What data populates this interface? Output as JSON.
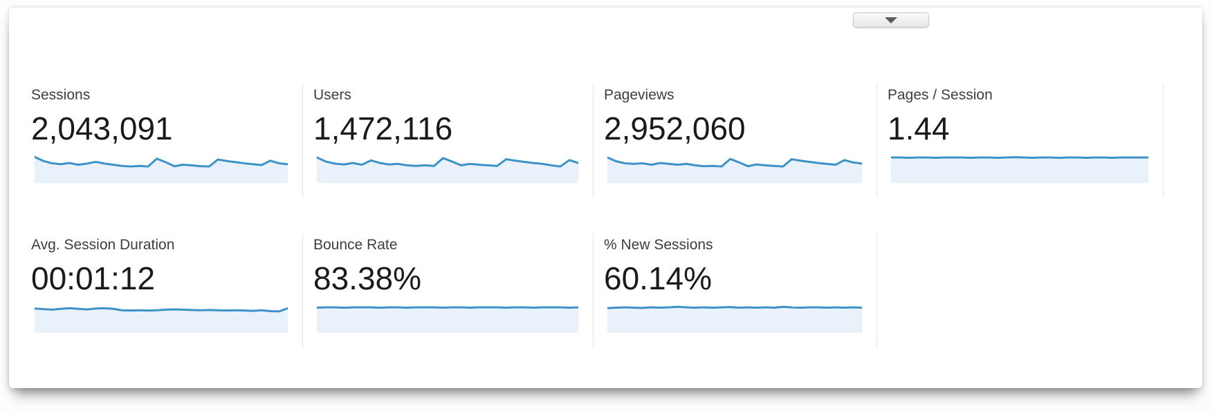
{
  "panel": {
    "collapse_button": {
      "icon": "chevron-down"
    }
  },
  "colors": {
    "spark_line": "#3c91c8",
    "spark_fill": "#e9f2fa",
    "divider": "#e3e3e3",
    "label_text": "#3d3d3d",
    "value_text": "#1a1a1a"
  },
  "metrics": [
    {
      "id": "sessions",
      "label": "Sessions",
      "value": "2,043,091",
      "spark": [
        0.1,
        0.24,
        0.32,
        0.35,
        0.31,
        0.37,
        0.33,
        0.27,
        0.33,
        0.37,
        0.41,
        0.43,
        0.41,
        0.43,
        0.16,
        0.28,
        0.42,
        0.37,
        0.39,
        0.42,
        0.43,
        0.19,
        0.24,
        0.28,
        0.32,
        0.35,
        0.38,
        0.23,
        0.32,
        0.35
      ]
    },
    {
      "id": "users",
      "label": "Users",
      "value": "1,472,116",
      "spark": [
        0.12,
        0.26,
        0.33,
        0.36,
        0.31,
        0.37,
        0.22,
        0.31,
        0.36,
        0.34,
        0.39,
        0.41,
        0.39,
        0.41,
        0.14,
        0.26,
        0.39,
        0.34,
        0.37,
        0.39,
        0.41,
        0.18,
        0.23,
        0.27,
        0.31,
        0.34,
        0.39,
        0.43,
        0.21,
        0.31
      ]
    },
    {
      "id": "pageviews",
      "label": "Pageviews",
      "value": "2,952,060",
      "spark": [
        0.12,
        0.25,
        0.32,
        0.34,
        0.32,
        0.37,
        0.31,
        0.34,
        0.37,
        0.34,
        0.39,
        0.42,
        0.41,
        0.43,
        0.17,
        0.29,
        0.42,
        0.36,
        0.39,
        0.41,
        0.43,
        0.18,
        0.23,
        0.27,
        0.31,
        0.34,
        0.37,
        0.21,
        0.29,
        0.33
      ]
    },
    {
      "id": "pages-session",
      "label": "Pages / Session",
      "value": "1.44",
      "spark": [
        0.12,
        0.12,
        0.13,
        0.12,
        0.12,
        0.13,
        0.12,
        0.12,
        0.12,
        0.13,
        0.12,
        0.12,
        0.13,
        0.12,
        0.11,
        0.12,
        0.13,
        0.12,
        0.12,
        0.13,
        0.12,
        0.12,
        0.13,
        0.12,
        0.12,
        0.13,
        0.12,
        0.12,
        0.12,
        0.12
      ]
    },
    {
      "id": "avg-session-duration",
      "label": "Avg. Session Duration",
      "value": "00:01:12",
      "spark": [
        0.16,
        0.18,
        0.2,
        0.17,
        0.15,
        0.17,
        0.19,
        0.16,
        0.15,
        0.17,
        0.22,
        0.23,
        0.22,
        0.23,
        0.22,
        0.2,
        0.19,
        0.2,
        0.21,
        0.22,
        0.21,
        0.22,
        0.23,
        0.22,
        0.23,
        0.24,
        0.22,
        0.25,
        0.26,
        0.15
      ]
    },
    {
      "id": "bounce-rate",
      "label": "Bounce Rate",
      "value": "83.38%",
      "spark": [
        0.13,
        0.12,
        0.12,
        0.13,
        0.12,
        0.12,
        0.12,
        0.13,
        0.12,
        0.12,
        0.13,
        0.12,
        0.12,
        0.12,
        0.13,
        0.12,
        0.12,
        0.13,
        0.12,
        0.12,
        0.12,
        0.13,
        0.12,
        0.12,
        0.13,
        0.12,
        0.12,
        0.12,
        0.13,
        0.12
      ]
    },
    {
      "id": "new-sessions",
      "label": "% New Sessions",
      "value": "60.14%",
      "spark": [
        0.15,
        0.13,
        0.12,
        0.13,
        0.14,
        0.12,
        0.13,
        0.12,
        0.1,
        0.12,
        0.13,
        0.12,
        0.13,
        0.12,
        0.11,
        0.13,
        0.12,
        0.13,
        0.12,
        0.13,
        0.1,
        0.12,
        0.13,
        0.12,
        0.12,
        0.13,
        0.12,
        0.13,
        0.12,
        0.13
      ]
    }
  ]
}
